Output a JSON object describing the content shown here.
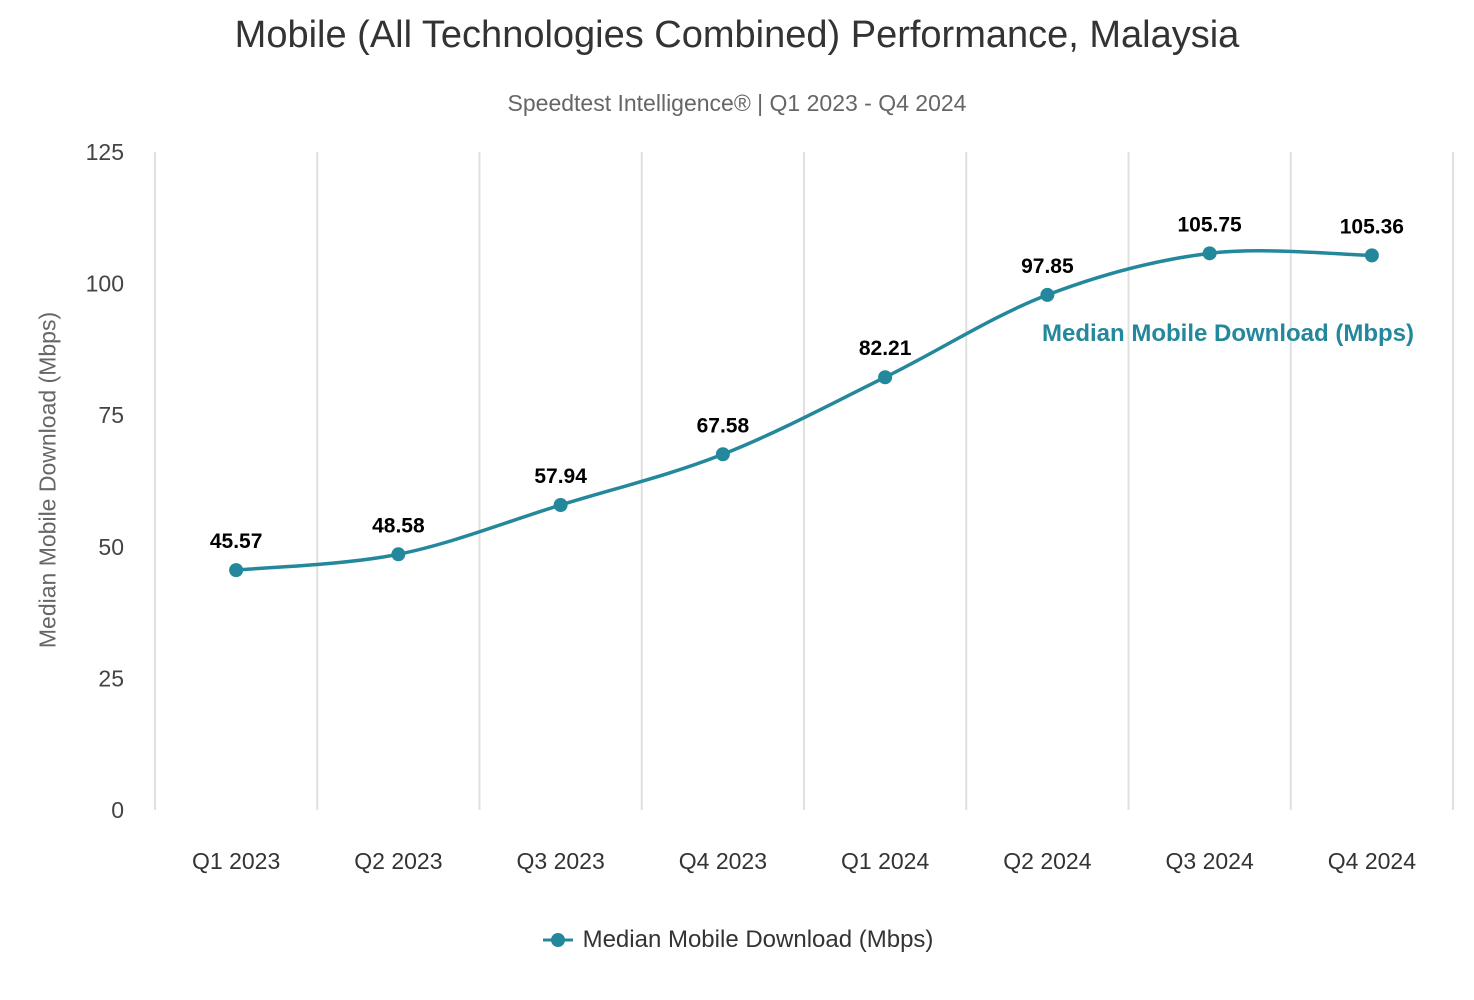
{
  "chart_data": {
    "type": "line",
    "title": "Mobile (All Technologies Combined) Performance, Malaysia",
    "subtitle": "Speedtest Intelligence® | Q1 2023 - Q4 2024",
    "xlabel": "",
    "ylabel": "Median Mobile Download (Mbps)",
    "ylim": [
      0,
      125
    ],
    "yticks": [
      "0",
      "25",
      "50",
      "75",
      "100",
      "125"
    ],
    "categories": [
      "Q1 2023",
      "Q2 2023",
      "Q3 2023",
      "Q4 2023",
      "Q1 2024",
      "Q2 2024",
      "Q3 2024",
      "Q4 2024"
    ],
    "series": [
      {
        "name": "Median Mobile Download (Mbps)",
        "values": [
          45.57,
          48.58,
          57.94,
          67.58,
          82.21,
          97.85,
          105.75,
          105.36
        ],
        "labels": [
          "45.57",
          "48.58",
          "57.94",
          "67.58",
          "82.21",
          "97.85",
          "105.75",
          "105.36"
        ],
        "color": "#24889c"
      }
    ],
    "grid": "vertical",
    "legend": "bottom-center",
    "annotation": "Median Mobile Download (Mbps)"
  }
}
